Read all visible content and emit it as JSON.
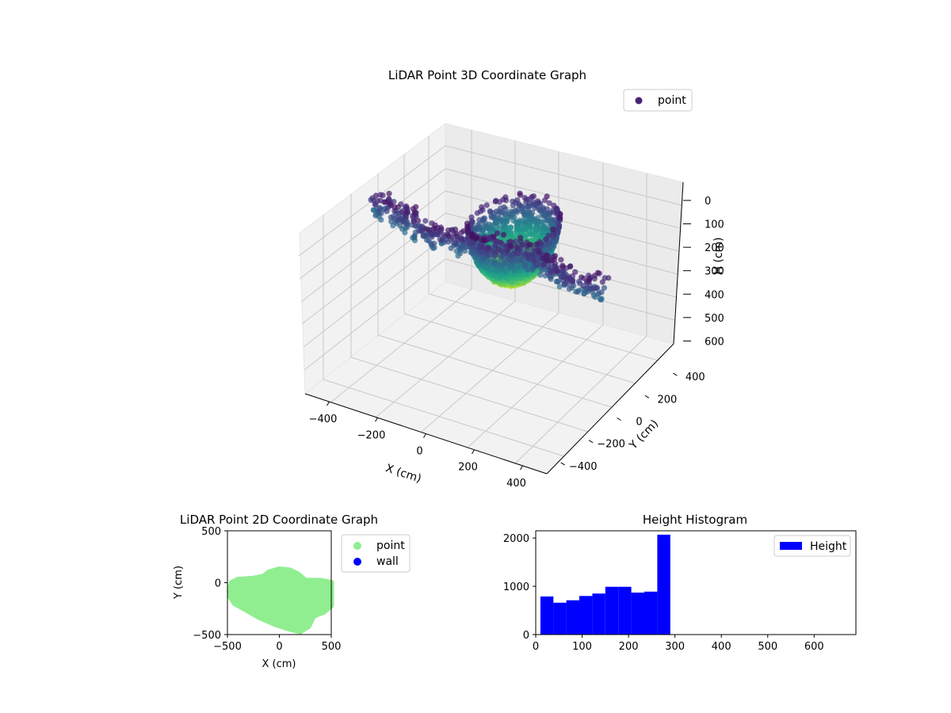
{
  "figure": {
    "background": "#ffffff"
  },
  "chart_data": [
    {
      "type": "scatter",
      "subtype": "3d",
      "title": "LiDAR Point 3D Coordinate Graph",
      "xlabel": "X (cm)",
      "ylabel": "Y (cm)",
      "zlabel": "H (cm)",
      "x_ticks": [
        -400,
        -200,
        0,
        200,
        400
      ],
      "y_ticks": [
        -400,
        -200,
        0,
        200,
        400
      ],
      "z_ticks": [
        0,
        100,
        200,
        300,
        400,
        500,
        600
      ],
      "x_tick_labels": [
        "−400",
        "−200",
        "0",
        "200",
        "400"
      ],
      "y_tick_labels": [
        "−400",
        "−200",
        "0",
        "200",
        "400"
      ],
      "z_tick_labels": [
        "0",
        "100",
        "200",
        "300",
        "400",
        "500",
        "600"
      ],
      "xlim": [
        -500,
        500
      ],
      "ylim": [
        -500,
        500
      ],
      "zlim": [
        0,
        690
      ],
      "z_inverted": true,
      "colormap": "viridis",
      "legend": {
        "entries": [
          "point"
        ],
        "placement": "top-right",
        "marker_color": "#482475"
      },
      "series": [
        {
          "name": "point",
          "description_shape": "dome of points (height up to ~280 cm) centred near origin with two low wall arms extending along X"
        }
      ]
    },
    {
      "type": "scatter",
      "title": "LiDAR Point 2D Coordinate Graph",
      "xlabel": "X (cm)",
      "ylabel": "Y (cm)",
      "xlim": [
        -500,
        500
      ],
      "ylim": [
        -500,
        500
      ],
      "x_ticks": [
        -500,
        0,
        500
      ],
      "y_ticks": [
        -500,
        0,
        500
      ],
      "x_tick_labels": [
        "−500",
        "0",
        "500"
      ],
      "y_tick_labels": [
        "−500",
        "0",
        "500"
      ],
      "legend": {
        "placement": "outside-right",
        "entries": [
          "point",
          "wall"
        ]
      },
      "series": [
        {
          "name": "point",
          "color": "#90ee90"
        },
        {
          "name": "wall",
          "color": "#0000ff"
        }
      ]
    },
    {
      "type": "bar",
      "subtype": "histogram",
      "title": "Height Histogram",
      "xlim": [
        0,
        690
      ],
      "ylim": [
        0,
        2150
      ],
      "x_ticks": [
        0,
        100,
        200,
        300,
        400,
        500,
        600
      ],
      "y_ticks": [
        0,
        1000,
        2000
      ],
      "x_tick_labels": [
        "0",
        "100",
        "200",
        "300",
        "400",
        "500",
        "600"
      ],
      "y_tick_labels": [
        "0",
        "1000",
        "2000"
      ],
      "bin_edges": [
        10,
        38,
        66,
        94,
        122,
        150,
        178,
        206,
        234,
        262,
        290
      ],
      "values": [
        790,
        660,
        710,
        800,
        850,
        990,
        990,
        870,
        890,
        2070
      ],
      "legend": {
        "entries": [
          "Height"
        ],
        "placement": "top-right"
      },
      "series": [
        {
          "name": "Height",
          "color": "#0000ff"
        }
      ]
    }
  ]
}
